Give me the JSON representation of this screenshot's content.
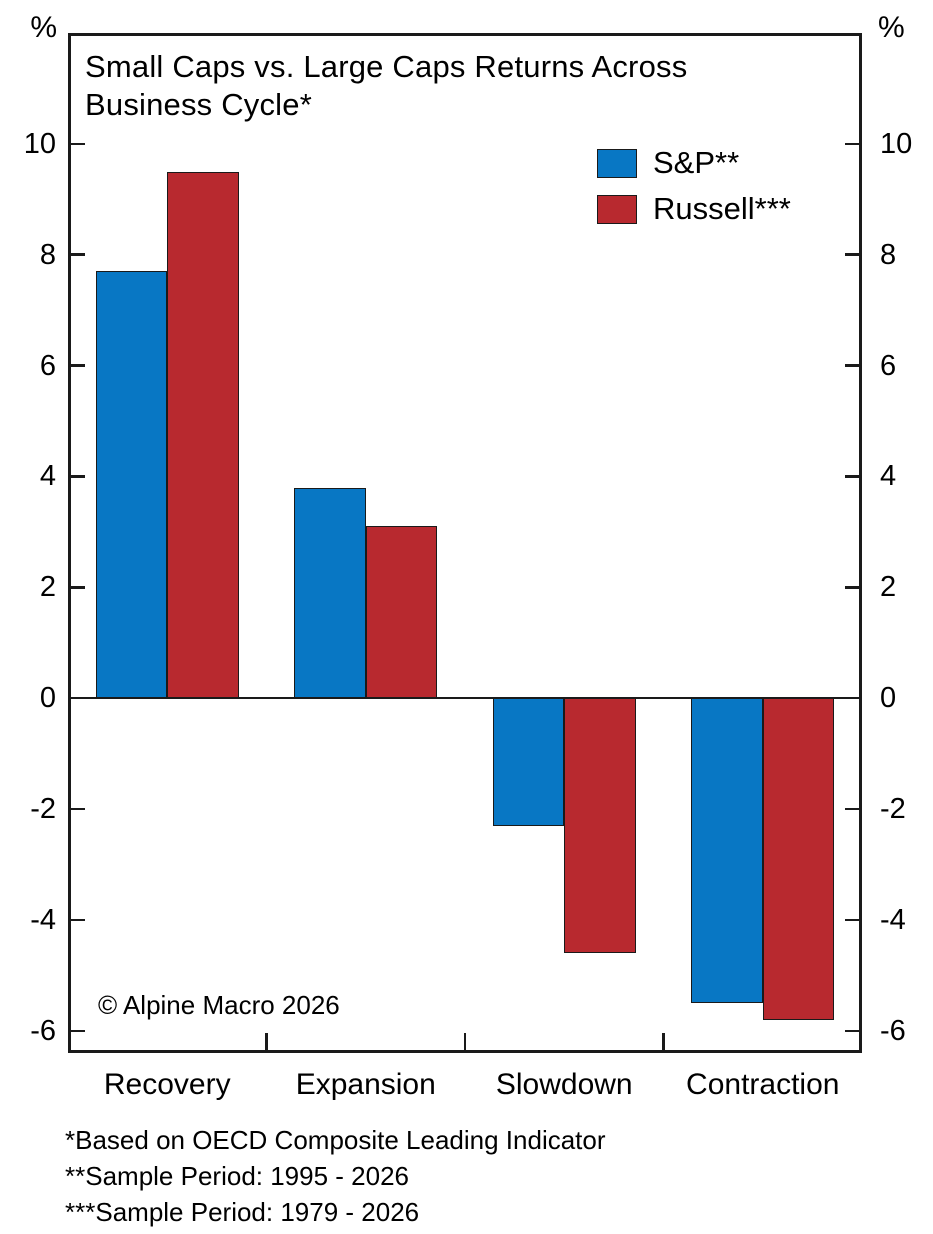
{
  "chart_data": {
    "type": "bar",
    "title": "Small Caps vs. Large Caps Returns Across Business Cycle*",
    "title_lines": [
      "Small Caps vs. Large Caps Returns Across",
      "Business Cycle*"
    ],
    "unit_label_left": "%",
    "unit_label_right": "%",
    "categories": [
      "Recovery",
      "Expansion",
      "Slowdown",
      "Contraction"
    ],
    "series": [
      {
        "name": "S&P**",
        "color": "#0877c4",
        "values": [
          7.7,
          3.8,
          -2.3,
          -5.5
        ]
      },
      {
        "name": "Russell***",
        "color": "#b8292f",
        "values": [
          9.5,
          3.1,
          -4.6,
          -5.8
        ]
      }
    ],
    "y_ticks": [
      10,
      8,
      6,
      4,
      2,
      0,
      -2,
      -4,
      -6
    ],
    "ylim": [
      -6.4,
      12
    ],
    "xlabel": "",
    "ylabel": "%",
    "grid": false,
    "zero_line": true,
    "legend_position": "top-right",
    "frame_color": "#1a1a1a",
    "background_color": "#ffffff"
  },
  "annotations": {
    "copyright": "© Alpine Macro 2026",
    "footnotes": [
      "*Based on OECD Composite Leading Indicator",
      "**Sample Period: 1995 - 2026",
      "***Sample Period: 1979 - 2026"
    ]
  }
}
